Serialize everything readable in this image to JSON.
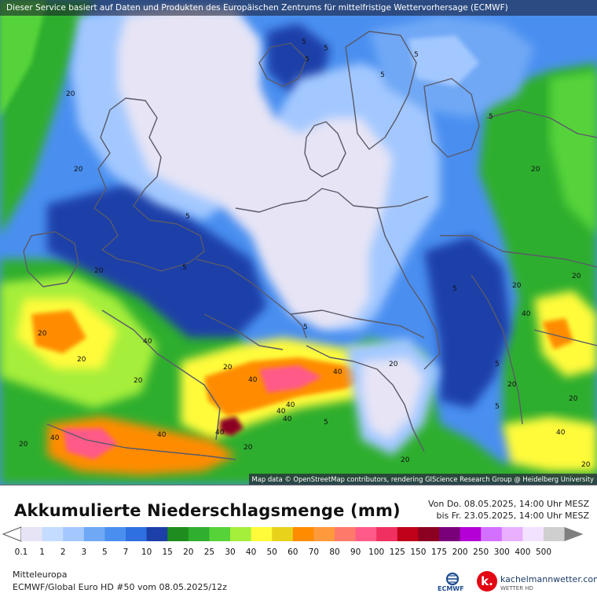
{
  "header": {
    "source_notice": "Dieser Service basiert auf Daten und Produkten des Europäischen Zentrums für mittelfristige Wettervorhersage (ECMWF)"
  },
  "map": {
    "attribution": "Map data © OpenStreetMap contributors, rendering GIScience Research Group @ Heidelberg University",
    "contour_labels": [
      "5",
      "5",
      "5",
      "5",
      "5",
      "5",
      "5",
      "5",
      "5",
      "5",
      "5",
      "5",
      "5",
      "20",
      "20",
      "20",
      "20",
      "20",
      "20",
      "20",
      "20",
      "20",
      "20",
      "20",
      "20",
      "20",
      "20",
      "20",
      "20",
      "20",
      "40",
      "40",
      "40",
      "40",
      "40",
      "40",
      "40",
      "40",
      "40",
      "40",
      "40"
    ]
  },
  "legend": {
    "title": "Akkumulierte Niederschlagsmenge (mm)",
    "period_from": "Von Do. 08.05.2025, 14:00 Uhr MESZ",
    "period_to": "bis Fr. 23.05.2025, 14:00 Uhr MESZ",
    "values": [
      "0.1",
      "1",
      "2",
      "3",
      "5",
      "7",
      "10",
      "15",
      "20",
      "25",
      "30",
      "40",
      "50",
      "60",
      "70",
      "80",
      "90",
      "100",
      "125",
      "150",
      "175",
      "200",
      "250",
      "300",
      "400",
      "500"
    ],
    "colors": [
      "#e6e4f5",
      "#c4dcff",
      "#a3c8ff",
      "#6fa8f5",
      "#4a8ff0",
      "#2f6fe0",
      "#1c3fa8",
      "#1e8c1e",
      "#2fae2f",
      "#57d33a",
      "#a5ee3b",
      "#fffb3a",
      "#e8d21c",
      "#ff8c00",
      "#ff9a3c",
      "#ff7a6a",
      "#ff5a88",
      "#f03060",
      "#c00018",
      "#8b0020",
      "#7a007a",
      "#b400d6",
      "#d470ff",
      "#e8b0ff",
      "#f2e2ff",
      "#cfcfcf"
    ]
  },
  "footer": {
    "region": "Mitteleuropa",
    "model_run": "ECMWF/Global Euro HD #50 vom  08.05.2025/12z",
    "ecmwf_label": "ECMWF",
    "brand_name": "kachelmannwetter.com",
    "brand_sub": "WETTER HD",
    "brand_icon": "k."
  }
}
